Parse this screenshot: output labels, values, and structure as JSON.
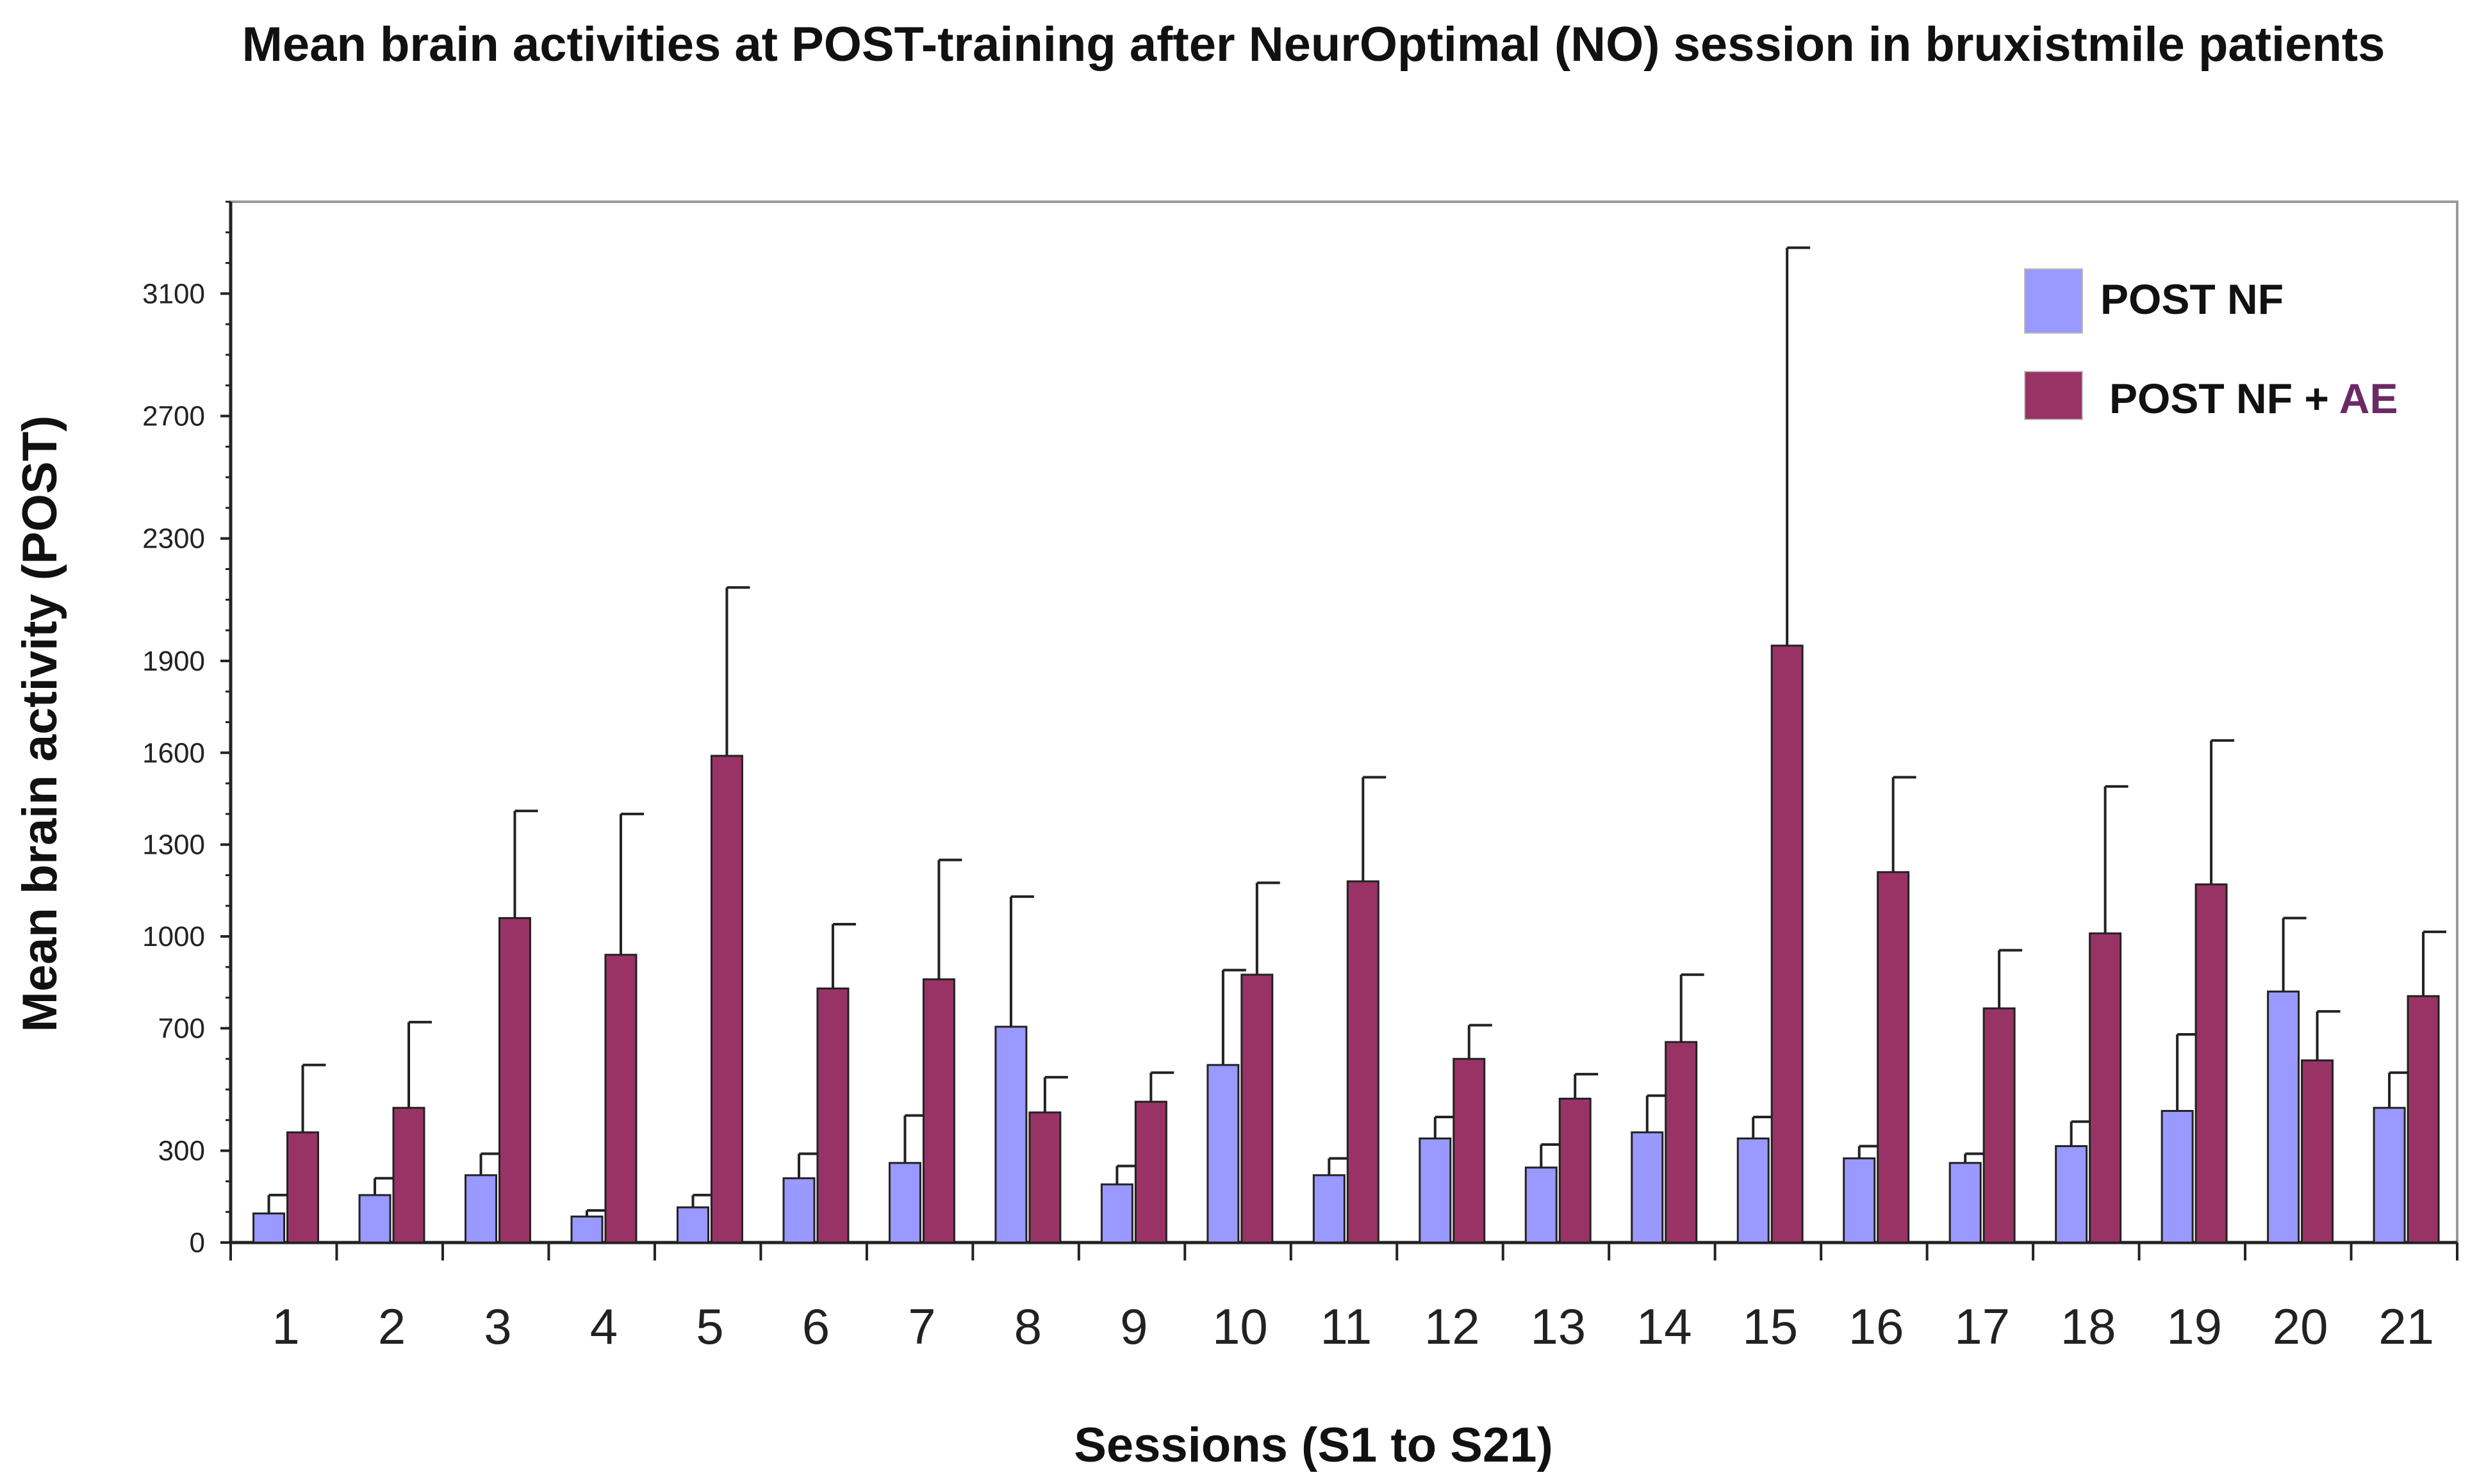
{
  "colors": {
    "post_nf": "#9999ff",
    "post_nf_ae": "#993366",
    "ae_text": "#6b2a66",
    "axis": "#222222",
    "bar_stroke": "#222222"
  },
  "chart_data": {
    "type": "bar",
    "title": "Mean brain activities at POST-training after NeurOptimal (NO) session in bruxistmile patients",
    "xlabel": "Sessions (S1 to S21)",
    "ylabel": "Mean brain activity (POST)",
    "yticks": [
      0,
      300,
      700,
      1000,
      1300,
      1600,
      1900,
      2300,
      2700,
      3100
    ],
    "ylim": [
      0,
      3400
    ],
    "categories": [
      "1",
      "2",
      "3",
      "4",
      "5",
      "6",
      "7",
      "8",
      "9",
      "10",
      "11",
      "12",
      "13",
      "14",
      "15",
      "16",
      "17",
      "18",
      "19",
      "20",
      "21"
    ],
    "series": [
      {
        "name": "POST NF",
        "legend_label": "POST NF",
        "values": [
          95,
          155,
          220,
          85,
          115,
          210,
          260,
          705,
          190,
          580,
          220,
          340,
          245,
          360,
          340,
          275,
          260,
          315,
          430,
          820,
          440
        ],
        "errors": [
          60,
          55,
          70,
          20,
          40,
          80,
          155,
          425,
          60,
          310,
          55,
          70,
          75,
          120,
          70,
          40,
          30,
          80,
          250,
          240,
          115
        ]
      },
      {
        "name": "POST NF + AE",
        "legend_label_prefix": "POST NF + ",
        "legend_label_suffix": "AE",
        "values": [
          360,
          440,
          1060,
          940,
          1590,
          830,
          860,
          425,
          460,
          875,
          1180,
          600,
          470,
          655,
          1950,
          1210,
          765,
          1010,
          1170,
          595,
          805
        ],
        "errors": [
          220,
          280,
          350,
          460,
          550,
          210,
          390,
          115,
          95,
          300,
          340,
          110,
          80,
          220,
          1300,
          310,
          190,
          480,
          470,
          160,
          210
        ]
      }
    ],
    "legend_position": "top-right"
  }
}
